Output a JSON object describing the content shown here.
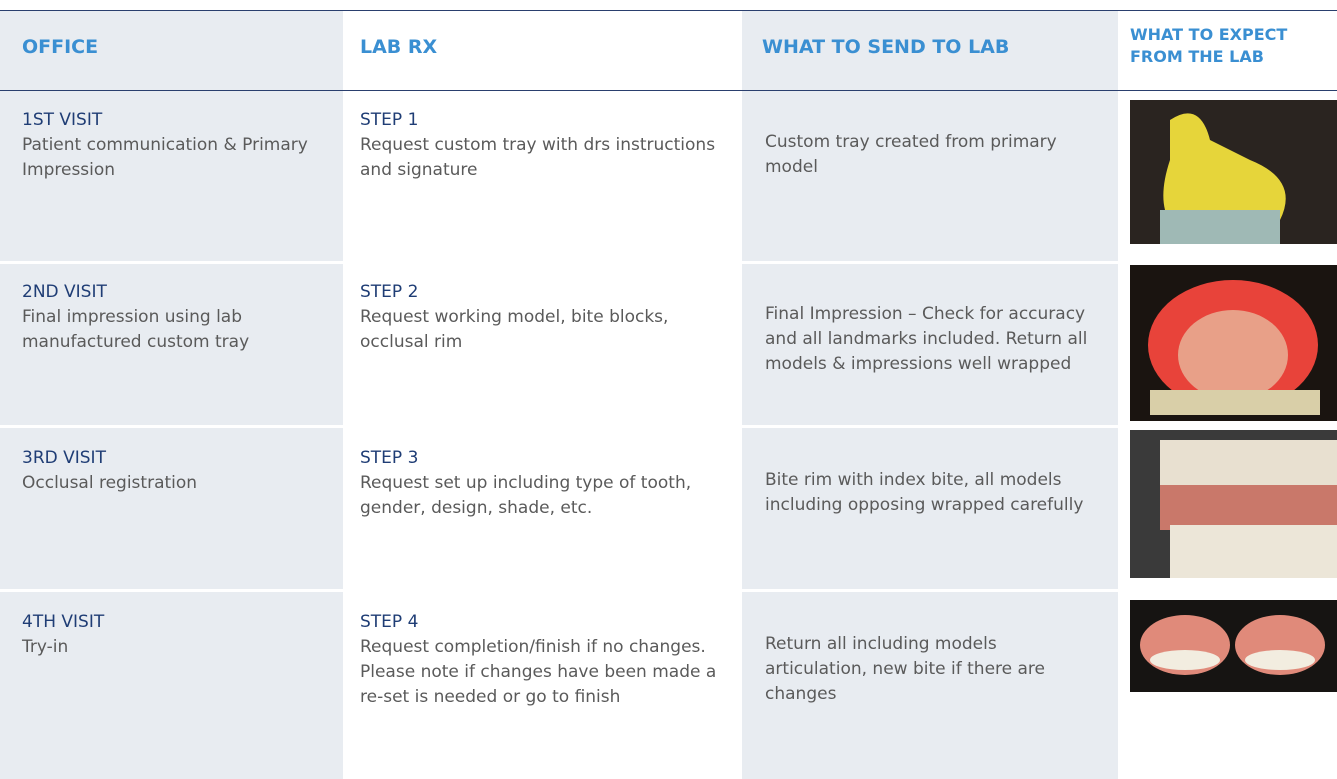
{
  "header": {
    "columns": [
      "OFFICE",
      "LAB RX",
      "WHAT TO SEND TO LAB",
      "WHAT TO EXPECT FROM THE LAB"
    ]
  },
  "rows": [
    {
      "visit": "1ST VISIT",
      "office": "Patient communication & Primary Impression",
      "step": "STEP 1",
      "lab_rx": "Request custom tray with drs instructions and signature",
      "send": "Custom tray created from primary model"
    },
    {
      "visit": "2ND VISIT",
      "office": "Final impression using lab manufactured custom tray",
      "step": "STEP 2",
      "lab_rx": "Request working model, bite blocks, occlusal rim",
      "send": "Final Impression – Check for accuracy and all landmarks included. Return all models & impressions well wrapped"
    },
    {
      "visit": "3RD VISIT",
      "office": "Occlusal registration",
      "step": "STEP 3",
      "lab_rx": "Request set up including type of tooth, gender, design, shade, etc.",
      "send": "Bite rim with index bite, all models including opposing wrapped carefully"
    },
    {
      "visit": "4TH VISIT",
      "office": "Try-in",
      "step": "STEP 4",
      "lab_rx": "Request completion/finish if no changes. Please note if changes have been made a re-set is needed or go to finish",
      "send": "Return all including models articulation, new bite if there are changes"
    }
  ]
}
